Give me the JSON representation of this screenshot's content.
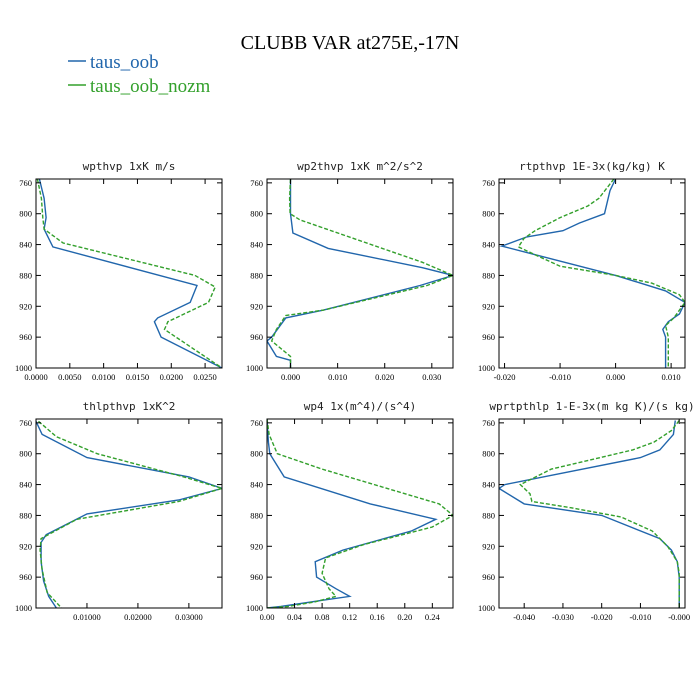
{
  "figure": {
    "title": "CLUBB VAR at275E,-17N",
    "legend": [
      {
        "label": "taus_oob",
        "color": "#2166ac",
        "dash": "solid"
      },
      {
        "label": "taus_oob_nozm",
        "color": "#33a02c",
        "dash": "dashed"
      }
    ]
  },
  "chart_data": [
    {
      "type": "line",
      "title": "wpthvp 1xK m/s",
      "ylim": [
        1000,
        755
      ],
      "yticks": [
        760,
        800,
        840,
        880,
        920,
        960,
        1000
      ],
      "xlim": [
        0,
        0.0275
      ],
      "xticks": [
        0,
        0.005,
        0.01,
        0.015,
        0.02,
        0.025
      ],
      "xticklabels": [
        "0.0000",
        "0.0050",
        "0.0100",
        "0.0150",
        "0.0200",
        "0.0250"
      ],
      "series": [
        {
          "name": "taus_oob",
          "points": [
            [
              0.0005,
              755
            ],
            [
              0.0012,
              780
            ],
            [
              0.0015,
              805
            ],
            [
              0.0012,
              820
            ],
            [
              0.0025,
              843
            ],
            [
              0.0238,
              893
            ],
            [
              0.0228,
              915
            ],
            [
              0.018,
              935
            ],
            [
              0.0175,
              940
            ],
            [
              0.0185,
              960
            ],
            [
              0.0275,
              1000
            ]
          ]
        },
        {
          "name": "taus_oob_nozm",
          "points": [
            [
              0.0002,
              755
            ],
            [
              0.0008,
              780
            ],
            [
              0.001,
              805
            ],
            [
              0.0012,
              820
            ],
            [
              0.004,
              838
            ],
            [
              0.0235,
              880
            ],
            [
              0.0265,
              895
            ],
            [
              0.0255,
              915
            ],
            [
              0.0195,
              940
            ],
            [
              0.019,
              950
            ],
            [
              0.0275,
              1000
            ]
          ]
        }
      ]
    },
    {
      "type": "line",
      "title": "wp2thvp 1xK m^2/s^2",
      "ylim": [
        1000,
        755
      ],
      "yticks": [
        760,
        800,
        840,
        880,
        920,
        960,
        1000
      ],
      "xlim": [
        -0.005,
        0.0345
      ],
      "xticks": [
        0,
        0.01,
        0.02,
        0.03
      ],
      "xticklabels": [
        "0.000",
        "0.010",
        "0.020",
        "0.030"
      ],
      "series": [
        {
          "name": "taus_oob",
          "points": [
            [
              0.0,
              755
            ],
            [
              0.0,
              800
            ],
            [
              0.0005,
              825
            ],
            [
              0.008,
              845
            ],
            [
              0.028,
              870
            ],
            [
              0.0345,
              880
            ],
            [
              0.0275,
              893
            ],
            [
              0.007,
              925
            ],
            [
              -0.001,
              935
            ],
            [
              -0.004,
              960
            ],
            [
              -0.005,
              965
            ],
            [
              -0.003,
              985
            ],
            [
              0.0,
              990
            ],
            [
              0.0,
              1000
            ]
          ]
        },
        {
          "name": "taus_oob_nozm",
          "points": [
            [
              0.0,
              755
            ],
            [
              -0.0002,
              780
            ],
            [
              -0.0001,
              800
            ],
            [
              0.002,
              808
            ],
            [
              0.028,
              863
            ],
            [
              0.0345,
              880
            ],
            [
              0.029,
              893
            ],
            [
              0.007,
              925
            ],
            [
              -0.001,
              932
            ],
            [
              -0.003,
              950
            ],
            [
              -0.004,
              965
            ],
            [
              -0.002,
              975
            ],
            [
              0.0,
              985
            ],
            [
              0.0,
              1000
            ]
          ]
        }
      ]
    },
    {
      "type": "line",
      "title": "rtpthvp 1E-3x(kg/kg) K",
      "ylim": [
        1000,
        755
      ],
      "yticks": [
        760,
        800,
        840,
        880,
        920,
        960,
        1000
      ],
      "xlim": [
        -0.021,
        0.0125
      ],
      "xticks": [
        -0.02,
        -0.01,
        0,
        0.01
      ],
      "xticklabels": [
        "-0.020",
        "-0.010",
        "0.000",
        "0.010"
      ],
      "series": [
        {
          "name": "taus_oob",
          "points": [
            [
              0.0,
              755
            ],
            [
              -0.001,
              770
            ],
            [
              -0.002,
              800
            ],
            [
              -0.0065,
              812
            ],
            [
              -0.0095,
              822
            ],
            [
              -0.016,
              830
            ],
            [
              -0.0205,
              842
            ],
            [
              0.0,
              880
            ],
            [
              0.009,
              900
            ],
            [
              0.0125,
              915
            ],
            [
              0.0115,
              930
            ],
            [
              0.0095,
              940
            ],
            [
              0.0085,
              950
            ],
            [
              0.009,
              960
            ],
            [
              0.009,
              975
            ],
            [
              0.009,
              1000
            ]
          ]
        },
        {
          "name": "taus_oob_nozm",
          "points": [
            [
              -0.0003,
              755
            ],
            [
              -0.003,
              780
            ],
            [
              -0.005,
              790
            ],
            [
              -0.01,
              805
            ],
            [
              -0.0145,
              822
            ],
            [
              -0.0165,
              832
            ],
            [
              -0.0175,
              843
            ],
            [
              -0.014,
              855
            ],
            [
              -0.01,
              868
            ],
            [
              0.0,
              880
            ],
            [
              0.0065,
              890
            ],
            [
              0.0115,
              905
            ],
            [
              0.0125,
              915
            ],
            [
              0.0105,
              935
            ],
            [
              0.009,
              945
            ],
            [
              0.0095,
              960
            ],
            [
              0.0095,
              1000
            ]
          ]
        }
      ]
    },
    {
      "type": "line",
      "title": "thlpthvp 1xK^2",
      "ylim": [
        1000,
        755
      ],
      "yticks": [
        760,
        800,
        840,
        880,
        920,
        960,
        1000
      ],
      "xlim": [
        0,
        0.0365
      ],
      "xticks": [
        0.01,
        0.02,
        0.03
      ],
      "xticklabels": [
        "0.01000",
        "0.02000",
        "0.03000"
      ],
      "series": [
        {
          "name": "taus_oob",
          "points": [
            [
              0.0,
              758
            ],
            [
              0.0012,
              775
            ],
            [
              0.01,
              805
            ],
            [
              0.03,
              830
            ],
            [
              0.0365,
              845
            ],
            [
              0.028,
              860
            ],
            [
              0.01,
              878
            ],
            [
              0.002,
              905
            ],
            [
              0.001,
              915
            ],
            [
              0.001,
              940
            ],
            [
              0.0015,
              965
            ],
            [
              0.0025,
              985
            ],
            [
              0.004,
              1000
            ]
          ]
        },
        {
          "name": "taus_oob_nozm",
          "points": [
            [
              0.0005,
              758
            ],
            [
              0.004,
              778
            ],
            [
              0.012,
              800
            ],
            [
              0.029,
              830
            ],
            [
              0.0365,
              845
            ],
            [
              0.028,
              862
            ],
            [
              0.008,
              885
            ],
            [
              0.001,
              910
            ],
            [
              0.0008,
              925
            ],
            [
              0.0012,
              950
            ],
            [
              0.0022,
              980
            ],
            [
              0.005,
              1000
            ]
          ]
        }
      ]
    },
    {
      "type": "line",
      "title": "wp4 1x(m^4)/(s^4)",
      "ylim": [
        1000,
        755
      ],
      "yticks": [
        760,
        800,
        840,
        880,
        920,
        960,
        1000
      ],
      "xlim": [
        0,
        0.27
      ],
      "xticks": [
        0,
        0.04,
        0.08,
        0.12,
        0.16,
        0.2,
        0.24
      ],
      "xticklabels": [
        "0.00",
        "0.04",
        "0.08",
        "0.12",
        "0.16",
        "0.20",
        "0.24"
      ],
      "series": [
        {
          "name": "taus_oob",
          "points": [
            [
              0.0,
              755
            ],
            [
              0.002,
              785
            ],
            [
              0.004,
              800
            ],
            [
              0.025,
              830
            ],
            [
              0.15,
              865
            ],
            [
              0.245,
              885
            ],
            [
              0.21,
              900
            ],
            [
              0.11,
              925
            ],
            [
              0.07,
              940
            ],
            [
              0.072,
              960
            ],
            [
              0.1,
              975
            ],
            [
              0.12,
              985
            ],
            [
              0.08,
              990
            ],
            [
              0.02,
              998
            ],
            [
              0.0,
              1000
            ]
          ]
        },
        {
          "name": "taus_oob_nozm",
          "points": [
            [
              0.0,
              755
            ],
            [
              0.003,
              775
            ],
            [
              0.015,
              800
            ],
            [
              0.08,
              820
            ],
            [
              0.25,
              865
            ],
            [
              0.27,
              880
            ],
            [
              0.24,
              895
            ],
            [
              0.14,
              918
            ],
            [
              0.085,
              935
            ],
            [
              0.08,
              955
            ],
            [
              0.09,
              975
            ],
            [
              0.1,
              985
            ],
            [
              0.07,
              992
            ],
            [
              0.03,
              998
            ],
            [
              0.0,
              1000
            ]
          ]
        }
      ]
    },
    {
      "type": "line",
      "title": "wprtpthlp 1-E-3x(m kg K)/(s kg)",
      "ylim": [
        1000,
        755
      ],
      "yticks": [
        760,
        800,
        840,
        880,
        920,
        960,
        1000
      ],
      "xlim": [
        -0.0465,
        0.0015
      ],
      "xticks": [
        -0.04,
        -0.03,
        -0.02,
        -0.01,
        0
      ],
      "xticklabels": [
        "-0.040",
        "-0.030",
        "-0.020",
        "-0.010",
        "-0.000"
      ],
      "series": [
        {
          "name": "taus_oob",
          "points": [
            [
              -0.001,
              757
            ],
            [
              -0.0015,
              775
            ],
            [
              -0.005,
              795
            ],
            [
              -0.01,
              805
            ],
            [
              -0.045,
              840
            ],
            [
              -0.0465,
              845
            ],
            [
              -0.04,
              865
            ],
            [
              -0.02,
              880
            ],
            [
              -0.005,
              910
            ],
            [
              -0.002,
              925
            ],
            [
              -0.0005,
              940
            ],
            [
              0.0,
              960
            ],
            [
              0.0,
              1000
            ]
          ]
        },
        {
          "name": "taus_oob_nozm",
          "points": [
            [
              0.0,
              757
            ],
            [
              -0.002,
              770
            ],
            [
              -0.0065,
              785
            ],
            [
              -0.012,
              795
            ],
            [
              -0.033,
              820
            ],
            [
              -0.041,
              840
            ],
            [
              -0.0385,
              852
            ],
            [
              -0.038,
              862
            ],
            [
              -0.028,
              870
            ],
            [
              -0.015,
              882
            ],
            [
              -0.007,
              900
            ],
            [
              -0.003,
              920
            ],
            [
              -0.0005,
              940
            ],
            [
              0.0,
              955
            ],
            [
              0.0,
              1000
            ]
          ]
        }
      ]
    }
  ]
}
